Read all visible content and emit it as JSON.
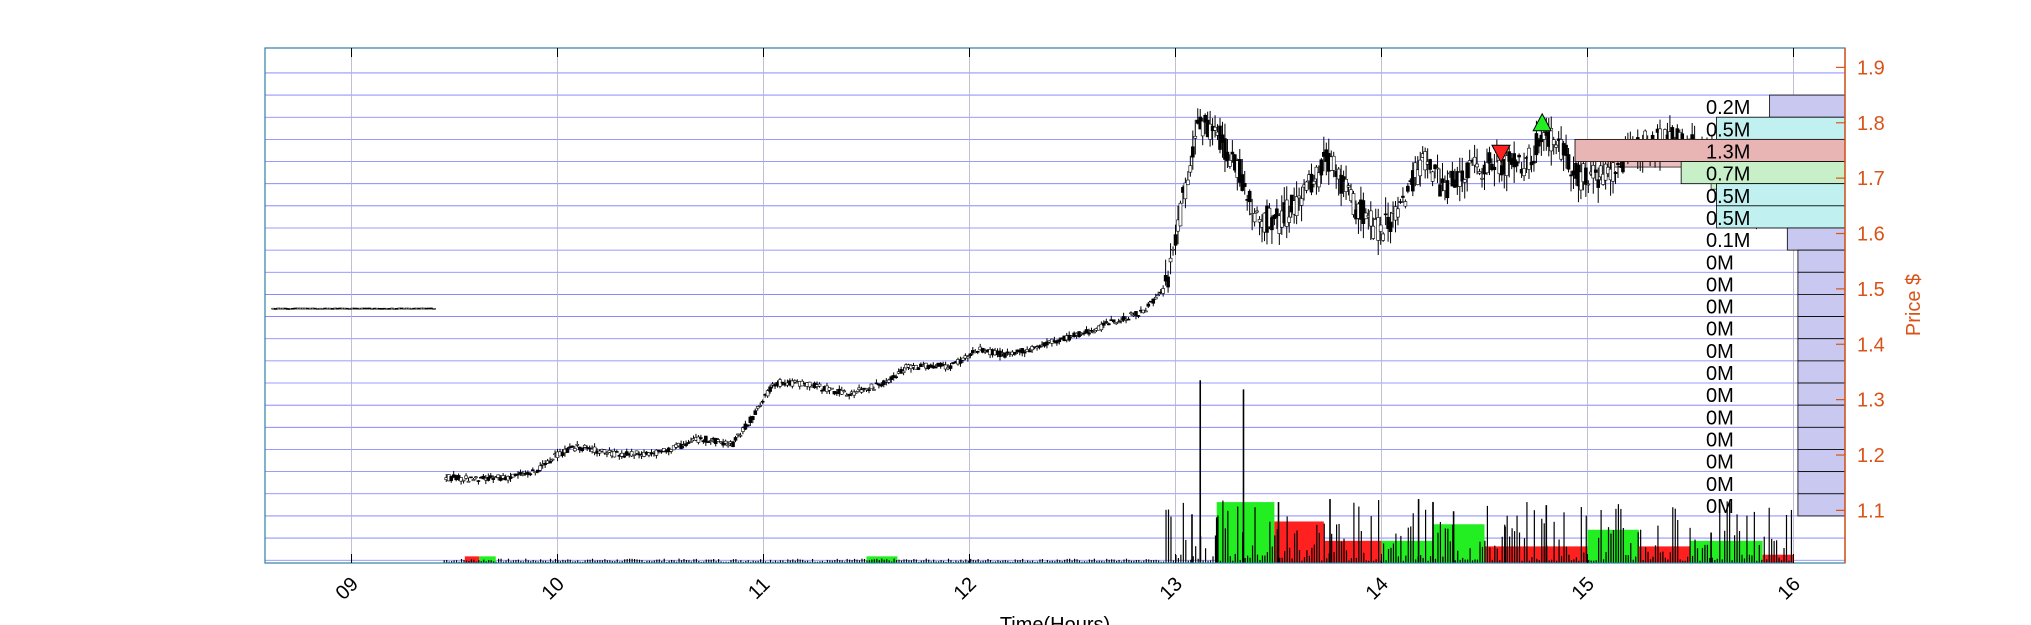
{
  "chart_data": {
    "type": "candlestick",
    "xlabel": "Time(Hours)",
    "ylabel": "Price $",
    "xlim": [
      8.58,
      16.25
    ],
    "ylim": [
      1.005,
      1.935
    ],
    "x_ticks": [
      9,
      10,
      11,
      12,
      13,
      14,
      15,
      16
    ],
    "x_tick_labels": [
      "09",
      "10",
      "11",
      "12",
      "13",
      "14",
      "15",
      "16"
    ],
    "y_ticks": [
      1.1,
      1.2,
      1.3,
      1.4,
      1.5,
      1.6,
      1.7,
      1.8,
      1.9
    ],
    "y_tick_labels": [
      "1.1",
      "1.2",
      "1.3",
      "1.4",
      "1.5",
      "1.6",
      "1.7",
      "1.8",
      "1.9"
    ],
    "grid": true,
    "price_path": [
      [
        8.6,
        1.465
      ],
      [
        9.4,
        1.465
      ],
      [
        9.45,
        1.16
      ],
      [
        9.6,
        1.155
      ],
      [
        9.75,
        1.16
      ],
      [
        9.9,
        1.17
      ],
      [
        10.0,
        1.2
      ],
      [
        10.1,
        1.215
      ],
      [
        10.3,
        1.2
      ],
      [
        10.5,
        1.205
      ],
      [
        10.7,
        1.23
      ],
      [
        10.85,
        1.22
      ],
      [
        10.95,
        1.27
      ],
      [
        11.05,
        1.33
      ],
      [
        11.2,
        1.33
      ],
      [
        11.4,
        1.31
      ],
      [
        11.6,
        1.33
      ],
      [
        11.7,
        1.36
      ],
      [
        11.9,
        1.36
      ],
      [
        12.05,
        1.39
      ],
      [
        12.2,
        1.38
      ],
      [
        12.4,
        1.405
      ],
      [
        12.55,
        1.42
      ],
      [
        12.7,
        1.44
      ],
      [
        12.85,
        1.46
      ],
      [
        12.95,
        1.5
      ],
      [
        13.02,
        1.63
      ],
      [
        13.08,
        1.74
      ],
      [
        13.12,
        1.8
      ],
      [
        13.2,
        1.78
      ],
      [
        13.3,
        1.72
      ],
      [
        13.4,
        1.63
      ],
      [
        13.5,
        1.62
      ],
      [
        13.6,
        1.66
      ],
      [
        13.7,
        1.71
      ],
      [
        13.75,
        1.74
      ],
      [
        13.85,
        1.66
      ],
      [
        14.0,
        1.6
      ],
      [
        14.1,
        1.66
      ],
      [
        14.2,
        1.73
      ],
      [
        14.3,
        1.68
      ],
      [
        14.45,
        1.72
      ],
      [
        14.6,
        1.73
      ],
      [
        14.7,
        1.72
      ],
      [
        14.78,
        1.78
      ],
      [
        14.85,
        1.77
      ],
      [
        14.95,
        1.7
      ],
      [
        15.1,
        1.71
      ],
      [
        15.25,
        1.76
      ],
      [
        15.4,
        1.77
      ],
      [
        15.6,
        1.74
      ],
      [
        15.8,
        1.64
      ],
      [
        15.95,
        1.68
      ],
      [
        16.0,
        1.66
      ]
    ],
    "volume_spikes": [
      [
        13.12,
        0.6
      ],
      [
        13.33,
        0.57
      ],
      [
        13.08,
        0.16
      ],
      [
        13.2,
        0.15
      ],
      [
        13.5,
        0.2
      ],
      [
        13.75,
        0.21
      ],
      [
        14.18,
        0.21
      ],
      [
        14.25,
        0.2
      ],
      [
        14.8,
        0.19
      ],
      [
        14.35,
        0.17
      ],
      [
        15.6,
        0.1
      ],
      [
        14.6,
        0.12
      ]
    ],
    "volume_blocks": [
      {
        "x0": 9.55,
        "x1": 9.62,
        "h": 0.012,
        "color": "#ff2020"
      },
      {
        "x0": 9.62,
        "x1": 9.7,
        "h": 0.012,
        "color": "#22ee22"
      },
      {
        "x0": 11.5,
        "x1": 11.65,
        "h": 0.012,
        "color": "#22ee22"
      },
      {
        "x0": 13.2,
        "x1": 13.48,
        "h": 0.11,
        "color": "#22ee22"
      },
      {
        "x0": 13.48,
        "x1": 13.72,
        "h": 0.075,
        "color": "#ff2020"
      },
      {
        "x0": 13.72,
        "x1": 14.0,
        "h": 0.04,
        "color": "#ff2020"
      },
      {
        "x0": 14.0,
        "x1": 14.25,
        "h": 0.04,
        "color": "#22ee22"
      },
      {
        "x0": 14.25,
        "x1": 14.5,
        "h": 0.07,
        "color": "#22ee22"
      },
      {
        "x0": 14.5,
        "x1": 15.0,
        "h": 0.03,
        "color": "#ff2020"
      },
      {
        "x0": 15.0,
        "x1": 15.25,
        "h": 0.06,
        "color": "#22ee22"
      },
      {
        "x0": 15.25,
        "x1": 15.5,
        "h": 0.03,
        "color": "#ff2020"
      },
      {
        "x0": 15.5,
        "x1": 15.85,
        "h": 0.04,
        "color": "#22ee22"
      },
      {
        "x0": 15.85,
        "x1": 16.0,
        "h": 0.015,
        "color": "#ff2020"
      }
    ],
    "markers": [
      {
        "type": "sell",
        "x": 14.58,
        "y": 1.745,
        "color": "#ff2020"
      },
      {
        "type": "buy",
        "x": 14.78,
        "y": 1.8,
        "color": "#22ee22"
      }
    ],
    "value_area_bands": [
      {
        "x0": 15.1,
        "x1": 15.6,
        "y0": 1.72,
        "y1": 1.76,
        "color": "#e8b4b4"
      },
      {
        "x0": 15.6,
        "x1": 16.0,
        "y0": 1.68,
        "y1": 1.72,
        "color": "#c8f0c8"
      },
      {
        "x0": 15.7,
        "x1": 16.0,
        "y0": 1.64,
        "y1": 1.68,
        "color": "#c0f0f0"
      }
    ],
    "volume_profile": [
      {
        "price": 1.83,
        "label": "0.2M",
        "value": 0.2,
        "color": "#c8c8f0"
      },
      {
        "price": 1.79,
        "label": "0.5M",
        "value": 0.5,
        "color": "#c0f0f0"
      },
      {
        "price": 1.75,
        "label": "1.3M",
        "value": 1.3,
        "color": "#e8b4b4"
      },
      {
        "price": 1.71,
        "label": "0.7M",
        "value": 0.7,
        "color": "#c8f0c8"
      },
      {
        "price": 1.67,
        "label": "0.5M",
        "value": 0.5,
        "color": "#c0f0f0"
      },
      {
        "price": 1.63,
        "label": "0.5M",
        "value": 0.5,
        "color": "#c0f0f0"
      },
      {
        "price": 1.59,
        "label": "0.1M",
        "value": 0.1,
        "color": "#c8c8f0"
      },
      {
        "price": 1.55,
        "label": "0M",
        "value": 0.04,
        "color": "#c8c8f0"
      },
      {
        "price": 1.51,
        "label": "0M",
        "value": 0.04,
        "color": "#c8c8f0"
      },
      {
        "price": 1.47,
        "label": "0M",
        "value": 0.04,
        "color": "#c8c8f0"
      },
      {
        "price": 1.43,
        "label": "0M",
        "value": 0.04,
        "color": "#c8c8f0"
      },
      {
        "price": 1.39,
        "label": "0M",
        "value": 0.04,
        "color": "#c8c8f0"
      },
      {
        "price": 1.35,
        "label": "0M",
        "value": 0.04,
        "color": "#c8c8f0"
      },
      {
        "price": 1.31,
        "label": "0M",
        "value": 0.04,
        "color": "#c8c8f0"
      },
      {
        "price": 1.27,
        "label": "0M",
        "value": 0.04,
        "color": "#c8c8f0"
      },
      {
        "price": 1.23,
        "label": "0M",
        "value": 0.04,
        "color": "#c8c8f0"
      },
      {
        "price": 1.19,
        "label": "0M",
        "value": 0.04,
        "color": "#c8c8f0"
      },
      {
        "price": 1.15,
        "label": "0M",
        "value": 0.04,
        "color": "#c8c8f0"
      },
      {
        "price": 1.11,
        "label": "0M",
        "value": 0.04,
        "color": "#c8c8f0"
      }
    ],
    "colors": {
      "axis_right": "#d95319",
      "grid_h": "#4040ff",
      "grid_v": "#b0b0c8",
      "frame": "#3080a0"
    }
  }
}
